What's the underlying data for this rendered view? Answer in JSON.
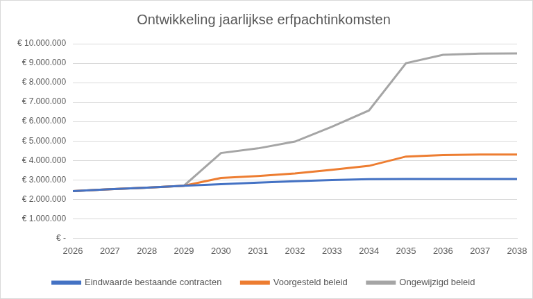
{
  "chart_data": {
    "type": "line",
    "title": "Ontwikkeling jaarlijkse erfpachtinkomsten",
    "categories": [
      "2026",
      "2027",
      "2028",
      "2029",
      "2030",
      "2031",
      "2032",
      "2033",
      "2034",
      "2035",
      "2036",
      "2037",
      "2038"
    ],
    "series": [
      {
        "name": "Eindwaarde bestaande contracten",
        "color": "#4472c4",
        "values": [
          2420000,
          2520000,
          2600000,
          2700000,
          2780000,
          2860000,
          2930000,
          2990000,
          3040000,
          3050000,
          3050000,
          3050000,
          3050000
        ]
      },
      {
        "name": "Voorgesteld beleid",
        "color": "#ed7d31",
        "values": [
          2420000,
          2520000,
          2600000,
          2700000,
          3100000,
          3200000,
          3330000,
          3520000,
          3720000,
          4200000,
          4280000,
          4300000,
          4300000
        ]
      },
      {
        "name": "Ongewijzigd beleid",
        "color": "#a5a5a5",
        "values": [
          2420000,
          2520000,
          2600000,
          2700000,
          4380000,
          4620000,
          4970000,
          5730000,
          6570000,
          9000000,
          9430000,
          9490000,
          9500000
        ]
      }
    ],
    "ylim": [
      0,
      10000000
    ],
    "yticks": [
      {
        "value": 0,
        "label": "€ -"
      },
      {
        "value": 1000000,
        "label": "€ 1.000.000"
      },
      {
        "value": 2000000,
        "label": "€ 2.000.000"
      },
      {
        "value": 3000000,
        "label": "€ 3.000.000"
      },
      {
        "value": 4000000,
        "label": "€ 4.000.000"
      },
      {
        "value": 5000000,
        "label": "€ 5.000.000"
      },
      {
        "value": 6000000,
        "label": "€ 6.000.000"
      },
      {
        "value": 7000000,
        "label": "€ 7.000.000"
      },
      {
        "value": 8000000,
        "label": "€ 8.000.000"
      },
      {
        "value": 9000000,
        "label": "€ 9.000.000"
      },
      {
        "value": 10000000,
        "label": "€ 10.000.000"
      }
    ],
    "grid": true,
    "legend": "bottom",
    "marker": "none"
  }
}
